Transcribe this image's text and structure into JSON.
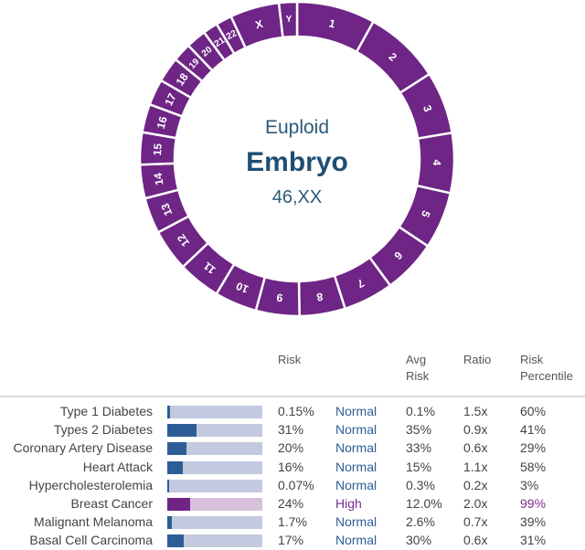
{
  "karyotype": {
    "status": "Euploid",
    "label": "Embryo",
    "karyotype": "46,XX",
    "color": "#6e2585",
    "chromosomes": [
      {
        "name": "1",
        "size": 249
      },
      {
        "name": "2",
        "size": 242
      },
      {
        "name": "3",
        "size": 198
      },
      {
        "name": "4",
        "size": 190
      },
      {
        "name": "5",
        "size": 181
      },
      {
        "name": "6",
        "size": 171
      },
      {
        "name": "7",
        "size": 159
      },
      {
        "name": "8",
        "size": 145
      },
      {
        "name": "9",
        "size": 138
      },
      {
        "name": "10",
        "size": 134
      },
      {
        "name": "11",
        "size": 135
      },
      {
        "name": "12",
        "size": 133
      },
      {
        "name": "13",
        "size": 114
      },
      {
        "name": "14",
        "size": 107
      },
      {
        "name": "15",
        "size": 102
      },
      {
        "name": "16",
        "size": 90
      },
      {
        "name": "17",
        "size": 83
      },
      {
        "name": "18",
        "size": 80
      },
      {
        "name": "19",
        "size": 59
      },
      {
        "name": "20",
        "size": 64
      },
      {
        "name": "21",
        "size": 47
      },
      {
        "name": "22",
        "size": 51
      },
      {
        "name": "X",
        "size": 156
      },
      {
        "name": "Y",
        "size": 57
      }
    ]
  },
  "table": {
    "headers": {
      "risk": "Risk",
      "avg_1": "Avg",
      "avg_2": "Risk",
      "ratio": "Ratio",
      "pct_1": "Risk",
      "pct_2": "Percentile"
    },
    "rows": [
      {
        "name": "Type 1 Diabetes",
        "fill": 0.03,
        "risk": "0.15%",
        "status": "Normal",
        "avg": "0.1%",
        "ratio": "1.5x",
        "pct": "60%",
        "high": false
      },
      {
        "name": "Types 2 Diabetes",
        "fill": 0.31,
        "risk": "31%",
        "status": "Normal",
        "avg": "35%",
        "ratio": "0.9x",
        "pct": "41%",
        "high": false
      },
      {
        "name": "Coronary Artery Disease",
        "fill": 0.2,
        "risk": "20%",
        "status": "Normal",
        "avg": "33%",
        "ratio": "0.6x",
        "pct": "29%",
        "high": false
      },
      {
        "name": "Heart Attack",
        "fill": 0.16,
        "risk": "16%",
        "status": "Normal",
        "avg": "15%",
        "ratio": "1.1x",
        "pct": "58%",
        "high": false
      },
      {
        "name": "Hypercholesterolemia",
        "fill": 0.01,
        "risk": "0.07%",
        "status": "Normal",
        "avg": "0.3%",
        "ratio": "0.2x",
        "pct": "3%",
        "high": false
      },
      {
        "name": "Breast Cancer",
        "fill": 0.24,
        "risk": "24%",
        "status": "High",
        "avg": "12.0%",
        "ratio": "2.0x",
        "pct": "99%",
        "high": true
      },
      {
        "name": "Malignant Melanoma",
        "fill": 0.05,
        "risk": "1.7%",
        "status": "Normal",
        "avg": "2.6%",
        "ratio": "0.7x",
        "pct": "39%",
        "high": false
      },
      {
        "name": "Basal Cell Carcinoma",
        "fill": 0.17,
        "risk": "17%",
        "status": "Normal",
        "avg": "30%",
        "ratio": "0.6x",
        "pct": "31%",
        "high": false
      }
    ]
  }
}
